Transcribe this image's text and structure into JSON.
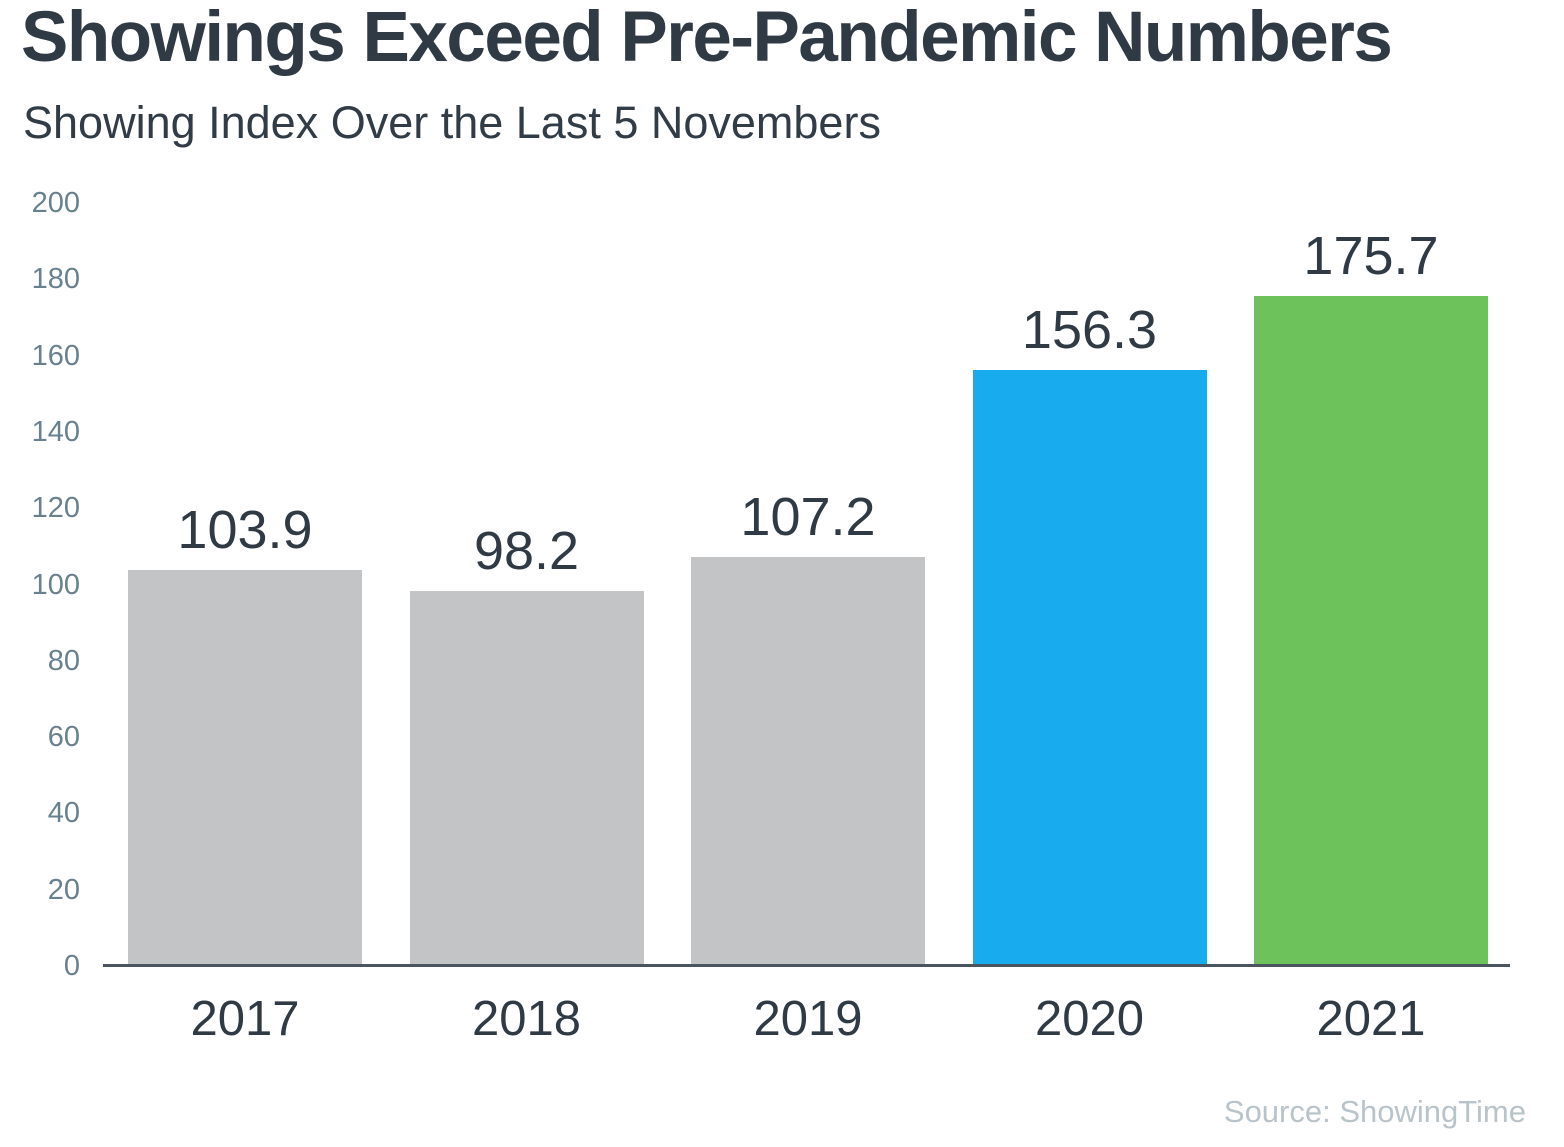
{
  "header": {
    "title": "Showings Exceed Pre-Pandemic Numbers",
    "subtitle": "Showing Index Over the Last 5 Novembers"
  },
  "footer": {
    "source": "Source: ShowingTime"
  },
  "colors": {
    "title_text": "#2f3a44",
    "axis_tick_text": "#69818f",
    "axis_line": "#4a555f",
    "bar_gray": "#c3c4c6",
    "bar_blue": "#18abee",
    "bar_green": "#6dc25b",
    "source_text": "#b9c4ca"
  },
  "chart_data": {
    "type": "bar",
    "title": "Showings Exceed Pre-Pandemic Numbers",
    "subtitle": "Showing Index Over the Last 5 Novembers",
    "categories": [
      "2017",
      "2018",
      "2019",
      "2020",
      "2021"
    ],
    "values": [
      103.9,
      98.2,
      107.2,
      156.3,
      175.7
    ],
    "value_labels": [
      "103.9",
      "98.2",
      "107.2",
      "156.3",
      "175.7"
    ],
    "bar_colors": [
      "#c3c4c6",
      "#c3c4c6",
      "#c3c4c6",
      "#18abee",
      "#6dc25b"
    ],
    "xlabel": "",
    "ylabel": "",
    "ylim": [
      0,
      200
    ],
    "yticks": [
      0,
      20,
      40,
      60,
      80,
      100,
      120,
      140,
      160,
      180,
      200
    ],
    "grid": false,
    "legend": null,
    "source": "Source: ShowingTime"
  }
}
